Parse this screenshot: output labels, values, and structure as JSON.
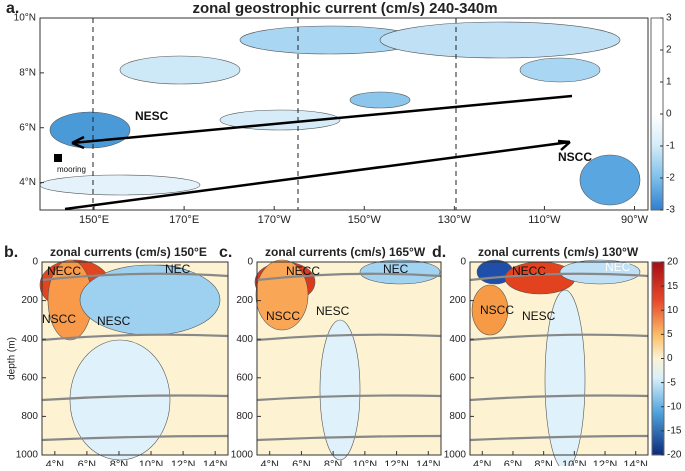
{
  "chart_data": [
    {
      "type": "contour",
      "label": "a.",
      "title": "zonal geostrophic current (cm/s) 240-340m",
      "xlim": [
        138,
        273
      ],
      "xticks": [
        {
          "value": 150,
          "label": "150°E"
        },
        {
          "value": 170,
          "label": "170°E"
        },
        {
          "value": 190,
          "label": "170°W"
        },
        {
          "value": 210,
          "label": "150°W"
        },
        {
          "value": 230,
          "label": "130°W"
        },
        {
          "value": 250,
          "label": "110°W"
        },
        {
          "value": 270,
          "label": "90°W"
        }
      ],
      "ylim": [
        3,
        10
      ],
      "yticks": [
        {
          "value": 4,
          "label": "4°N"
        },
        {
          "value": 6,
          "label": "6°N"
        },
        {
          "value": 8,
          "label": "8°N"
        },
        {
          "value": 10,
          "label": "10°N"
        }
      ],
      "colorbar": {
        "lim": [
          -3,
          3
        ],
        "ticks": [
          -3,
          -2,
          -1,
          0,
          1,
          2,
          3
        ]
      },
      "annotations": [
        "NESC",
        "NSCC",
        "mooring"
      ]
    },
    {
      "type": "contour",
      "label": "b.",
      "title": "zonal currents (cm/s) 150°E",
      "ylabel": "depth (m)",
      "xlim": [
        3.2,
        14.8
      ],
      "xticks": [
        {
          "value": 4,
          "label": "4°N"
        },
        {
          "value": 6,
          "label": "6°N"
        },
        {
          "value": 8,
          "label": "8°N"
        },
        {
          "value": 10,
          "label": "10°N"
        },
        {
          "value": 12,
          "label": "12°N"
        },
        {
          "value": 14,
          "label": "14°N"
        }
      ],
      "ylim": [
        1000,
        0
      ],
      "yticks": [
        0,
        200,
        400,
        600,
        800,
        1000
      ],
      "annotations": [
        "NECC",
        "NEC",
        "NSCC",
        "NESC"
      ]
    },
    {
      "type": "contour",
      "label": "c.",
      "title": "zonal currents (cm/s) 165°W",
      "xlim": [
        3.2,
        14.8
      ],
      "xticks": [
        {
          "value": 4,
          "label": "4°N"
        },
        {
          "value": 6,
          "label": "6°N"
        },
        {
          "value": 8,
          "label": "8°N"
        },
        {
          "value": 10,
          "label": "10°N"
        },
        {
          "value": 12,
          "label": "12°N"
        },
        {
          "value": 14,
          "label": "14°N"
        }
      ],
      "ylim": [
        1000,
        0
      ],
      "yticks": [
        0,
        200,
        400,
        600,
        800,
        1000
      ],
      "annotations": [
        "NECC",
        "NEC",
        "NSCC",
        "NESC"
      ]
    },
    {
      "type": "contour",
      "label": "d.",
      "title": "zonal currents (cm/s) 130°W",
      "xlim": [
        3.2,
        14.8
      ],
      "xticks": [
        {
          "value": 4,
          "label": "4°N"
        },
        {
          "value": 6,
          "label": "6°N"
        },
        {
          "value": 8,
          "label": "8°N"
        },
        {
          "value": 10,
          "label": "10°N"
        },
        {
          "value": 12,
          "label": "12°N"
        },
        {
          "value": 14,
          "label": "14°N"
        }
      ],
      "ylim": [
        1000,
        0
      ],
      "yticks": [
        0,
        200,
        400,
        600,
        800,
        1000
      ],
      "colorbar": {
        "lim": [
          -20,
          20
        ],
        "ticks": [
          -20,
          -15,
          -10,
          -5,
          0,
          5,
          10,
          15,
          20
        ]
      },
      "annotations": [
        "NECC",
        "NEC",
        "NSCC",
        "NESC"
      ]
    }
  ]
}
